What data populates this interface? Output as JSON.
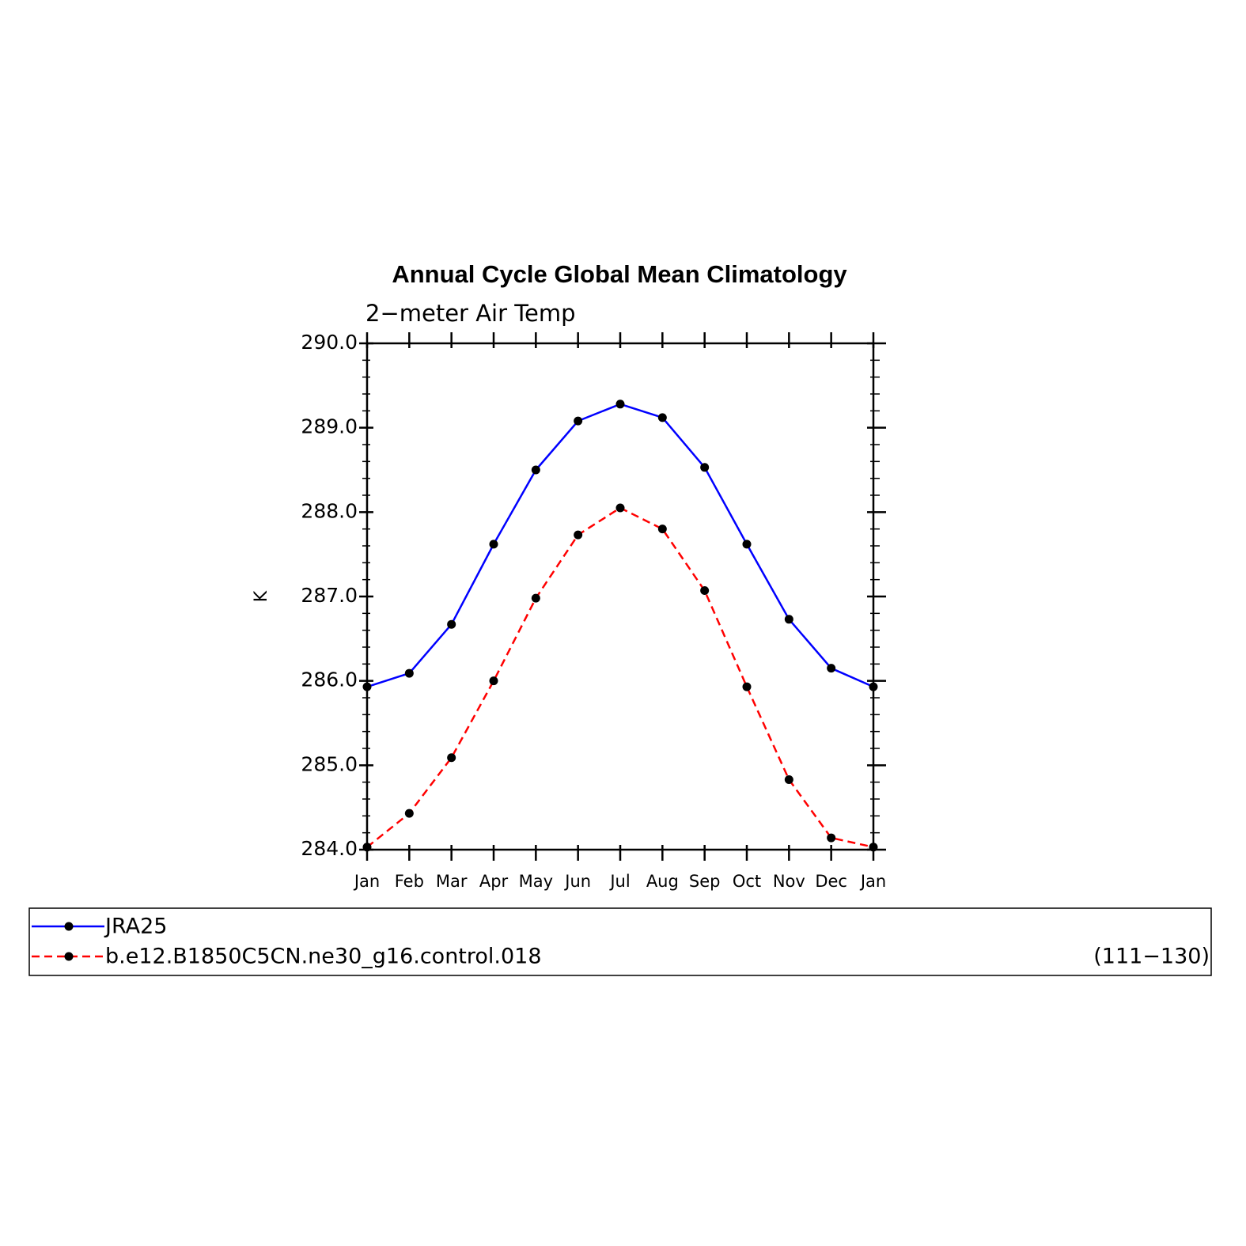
{
  "chart_data": {
    "type": "line",
    "title": "Annual Cycle Global Mean Climatology",
    "subtitle": "2−meter Air Temp",
    "y_label": "K",
    "categories": [
      "Jan",
      "Feb",
      "Mar",
      "Apr",
      "May",
      "Jun",
      "Jul",
      "Aug",
      "Sep",
      "Oct",
      "Nov",
      "Dec",
      "Jan"
    ],
    "series": [
      {
        "name": "JRA25",
        "color": "#0000ff",
        "dash": false,
        "values": [
          285.93,
          286.09,
          286.67,
          287.62,
          288.5,
          289.08,
          289.28,
          289.12,
          288.53,
          287.62,
          286.73,
          286.15,
          285.93
        ]
      },
      {
        "name": "b.e12.B1850C5CN.ne30_g16.control.018",
        "color": "#ff0000",
        "dash": true,
        "period": "(111−130)",
        "values": [
          284.03,
          284.43,
          285.09,
          286.0,
          286.98,
          287.73,
          288.05,
          287.8,
          287.07,
          285.93,
          284.83,
          284.14,
          284.03
        ]
      }
    ],
    "marker_color": "#000000",
    "ylim": [
      284,
      290
    ],
    "yticks": [
      {
        "value": 284,
        "label": "284.0"
      },
      {
        "value": 285,
        "label": "285.0"
      },
      {
        "value": 286,
        "label": "286.0"
      },
      {
        "value": 287,
        "label": "287.0"
      },
      {
        "value": 288,
        "label": "288.0"
      },
      {
        "value": 289,
        "label": "289.0"
      },
      {
        "value": 290,
        "label": "290.0"
      }
    ],
    "yminorticks": [
      284.2,
      284.4,
      284.6,
      284.8,
      285.2,
      285.4,
      285.6,
      285.8,
      286.2,
      286.4,
      286.6,
      286.8,
      287.2,
      287.4,
      287.6,
      287.8,
      288.2,
      288.4,
      288.6,
      288.8,
      289.2,
      289.4,
      289.6,
      289.8
    ],
    "grid": false
  }
}
